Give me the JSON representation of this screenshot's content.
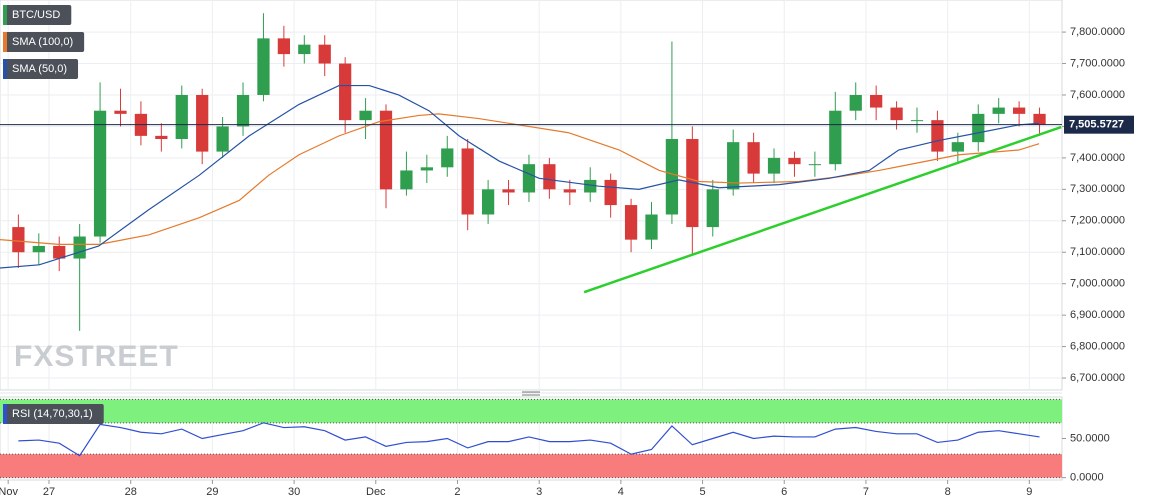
{
  "chart_data": [
    {
      "type": "candlestick",
      "watermark": "FXSTREET",
      "xlim": [
        -0.6,
        12.4
      ],
      "xticks": [
        {
          "value": -0.5,
          "label": "Nov"
        },
        {
          "value": 0,
          "label": "27"
        },
        {
          "value": 1,
          "label": "28"
        },
        {
          "value": 2,
          "label": "29"
        },
        {
          "value": 3,
          "label": "30"
        },
        {
          "value": 4,
          "label": "Dec"
        },
        {
          "value": 5,
          "label": "2"
        },
        {
          "value": 6,
          "label": "3"
        },
        {
          "value": 7,
          "label": "4"
        },
        {
          "value": 8,
          "label": "5"
        },
        {
          "value": 9,
          "label": "6"
        },
        {
          "value": 10,
          "label": "7"
        },
        {
          "value": 11,
          "label": "8"
        },
        {
          "value": 12,
          "label": "9"
        }
      ],
      "ylim": [
        6662,
        7902
      ],
      "yticks": [
        {
          "value": 6700,
          "label": "6,700.0000"
        },
        {
          "value": 6800,
          "label": "6,800.0000"
        },
        {
          "value": 6900,
          "label": "6,900.0000"
        },
        {
          "value": 7000,
          "label": "7,000.0000"
        },
        {
          "value": 7100,
          "label": "7,100.0000"
        },
        {
          "value": 7200,
          "label": "7,200.0000"
        },
        {
          "value": 7300,
          "label": "7,300.0000"
        },
        {
          "value": 7400,
          "label": "7,400.0000"
        },
        {
          "value": 7500,
          "label": "7,500.0000"
        },
        {
          "value": 7600,
          "label": "7,600.0000"
        },
        {
          "value": 7700,
          "label": "7,700.0000"
        },
        {
          "value": 7800,
          "label": "7,800.0000"
        }
      ],
      "grid": true,
      "series": [
        {
          "name": "BTC/USD",
          "type": "candlestick",
          "color": "#2f9e4f",
          "down_color": "#d83a3a",
          "x": [
            -0.375,
            -0.125,
            0.125,
            0.375,
            0.625,
            0.875,
            1.125,
            1.375,
            1.625,
            1.875,
            2.125,
            2.375,
            2.625,
            2.875,
            3.125,
            3.375,
            3.625,
            3.875,
            4.125,
            4.375,
            4.625,
            4.875,
            5.125,
            5.375,
            5.625,
            5.875,
            6.125,
            6.375,
            6.625,
            6.875,
            7.125,
            7.375,
            7.625,
            7.875,
            8.125,
            8.375,
            8.625,
            8.875,
            9.125,
            9.375,
            9.625,
            9.875,
            10.125,
            10.375,
            10.625,
            10.875,
            11.125,
            11.375,
            11.625,
            11.875,
            12.125
          ],
          "open": [
            7180,
            7100,
            7120,
            7080,
            7150,
            7550,
            7540,
            7470,
            7460,
            7600,
            7420,
            7500,
            7600,
            7780,
            7730,
            7760,
            7700,
            7520,
            7550,
            7300,
            7360,
            7370,
            7430,
            7220,
            7300,
            7290,
            7380,
            7300,
            7290,
            7330,
            7250,
            7140,
            7220,
            7460,
            7180,
            7300,
            7450,
            7350,
            7400,
            7380,
            7380,
            7550,
            7600,
            7560,
            7520,
            7520,
            7420,
            7450,
            7540,
            7560,
            7540
          ],
          "high": [
            7220,
            7160,
            7150,
            7190,
            7640,
            7620,
            7580,
            7510,
            7630,
            7620,
            7530,
            7640,
            7860,
            7820,
            7790,
            7790,
            7720,
            7590,
            7570,
            7420,
            7410,
            7470,
            7460,
            7330,
            7330,
            7410,
            7400,
            7330,
            7370,
            7350,
            7270,
            7260,
            7770,
            7500,
            7330,
            7490,
            7480,
            7430,
            7420,
            7420,
            7610,
            7640,
            7630,
            7580,
            7560,
            7550,
            7480,
            7570,
            7590,
            7580,
            7560
          ],
          "low": [
            7050,
            7060,
            7040,
            6850,
            7130,
            7500,
            7440,
            7420,
            7430,
            7380,
            7400,
            7470,
            7580,
            7690,
            7700,
            7660,
            7480,
            7460,
            7240,
            7280,
            7320,
            7340,
            7170,
            7190,
            7250,
            7260,
            7270,
            7250,
            7260,
            7210,
            7100,
            7110,
            7190,
            7090,
            7150,
            7280,
            7320,
            7320,
            7340,
            7340,
            7360,
            7520,
            7520,
            7490,
            7480,
            7390,
            7380,
            7420,
            7510,
            7500,
            7470
          ],
          "close": [
            7100,
            7120,
            7080,
            7150,
            7550,
            7540,
            7470,
            7460,
            7600,
            7420,
            7500,
            7600,
            7780,
            7730,
            7760,
            7700,
            7520,
            7550,
            7300,
            7360,
            7370,
            7430,
            7220,
            7300,
            7290,
            7380,
            7300,
            7290,
            7330,
            7250,
            7140,
            7220,
            7460,
            7180,
            7300,
            7450,
            7350,
            7400,
            7380,
            7380,
            7550,
            7600,
            7560,
            7520,
            7520,
            7420,
            7450,
            7540,
            7560,
            7540,
            7505.5727
          ]
        },
        {
          "name": "SMA (100,0)",
          "type": "line",
          "color": "#e57a2c",
          "x": [
            -0.6,
            0.12,
            0.61,
            1.22,
            1.84,
            2.33,
            2.69,
            3.06,
            3.55,
            4.04,
            4.53,
            4.77,
            5.26,
            5.75,
            6.36,
            6.98,
            7.47,
            7.96,
            8.45,
            9.18,
            9.67,
            10.16,
            10.65,
            11.14,
            11.63,
            11.87,
            12.12
          ],
          "values": [
            7140,
            7125,
            7125,
            7155,
            7210,
            7265,
            7345,
            7410,
            7470,
            7515,
            7535,
            7540,
            7525,
            7505,
            7480,
            7425,
            7360,
            7325,
            7320,
            7325,
            7340,
            7360,
            7385,
            7410,
            7420,
            7425,
            7445
          ]
        },
        {
          "name": "SMA (50,0)",
          "type": "line",
          "color": "#2552a6",
          "x": [
            -0.6,
            -0.12,
            0.61,
            1.22,
            1.84,
            2.45,
            3.06,
            3.55,
            3.92,
            4.28,
            4.65,
            5.02,
            5.51,
            6.0,
            6.73,
            7.22,
            7.71,
            8.2,
            8.94,
            9.55,
            10.04,
            10.4,
            10.89,
            11.38,
            11.87,
            12.12
          ],
          "values": [
            7050,
            7060,
            7120,
            7235,
            7345,
            7470,
            7570,
            7630,
            7630,
            7600,
            7550,
            7470,
            7390,
            7335,
            7310,
            7300,
            7330,
            7305,
            7315,
            7335,
            7360,
            7425,
            7455,
            7480,
            7505,
            7510
          ]
        }
      ],
      "trendline": {
        "color": "#2ccf2c",
        "x": [
          6.55,
          12.39
        ],
        "values": [
          6973,
          7498
        ]
      },
      "last_price": {
        "value": 7505.5727,
        "label": "7,505.5727",
        "color": "#1c2a4a"
      }
    },
    {
      "type": "line",
      "ylim": [
        -3,
        103
      ],
      "yticks": [
        {
          "value": 50,
          "label": "50.0000"
        },
        {
          "value": 0,
          "label": "0.0000"
        }
      ],
      "zones": [
        {
          "range": [
            70,
            100
          ],
          "color": "#7ef07e"
        },
        {
          "range": [
            0,
            30
          ],
          "color": "#f87c7c"
        }
      ],
      "series": [
        {
          "name": "RSI (14,70,30,1)",
          "type": "line",
          "color": "#2f4fd0",
          "x": [
            -0.375,
            -0.125,
            0.125,
            0.375,
            0.625,
            0.875,
            1.125,
            1.375,
            1.625,
            1.875,
            2.125,
            2.375,
            2.625,
            2.875,
            3.125,
            3.375,
            3.625,
            3.875,
            4.125,
            4.375,
            4.625,
            4.875,
            5.125,
            5.375,
            5.625,
            5.875,
            6.125,
            6.375,
            6.625,
            6.875,
            7.125,
            7.375,
            7.625,
            7.875,
            8.125,
            8.375,
            8.625,
            8.875,
            9.125,
            9.375,
            9.625,
            9.875,
            10.125,
            10.375,
            10.625,
            10.875,
            11.125,
            11.375,
            11.625,
            11.875,
            12.125
          ],
          "values": [
            47,
            48,
            44,
            28,
            68,
            64,
            58,
            56,
            62,
            50,
            55,
            60,
            70,
            64,
            65,
            60,
            48,
            52,
            40,
            45,
            46,
            50,
            38,
            46,
            46,
            52,
            46,
            46,
            48,
            44,
            30,
            36,
            66,
            42,
            50,
            58,
            50,
            53,
            52,
            52,
            62,
            64,
            59,
            56,
            56,
            45,
            48,
            58,
            60,
            56,
            52
          ]
        }
      ]
    }
  ]
}
